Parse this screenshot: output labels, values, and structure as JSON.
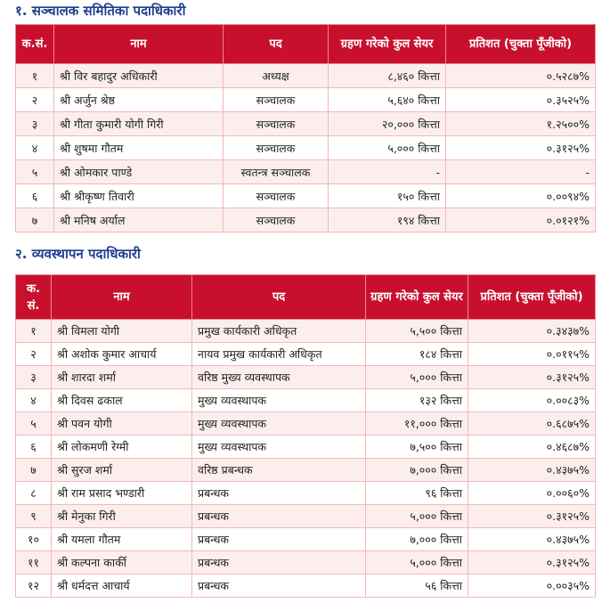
{
  "board": {
    "title": "१. सञ्चालक समितिका पदाधिकारी",
    "header": [
      "क.सं.",
      "नाम",
      "पद",
      "ग्रहण गरेको कुल सेयर",
      "प्रतिशत (चुक्ता पूँजीको)"
    ],
    "rows": [
      [
        "१",
        "श्री विर बहादुर अधिकारी",
        "अध्यक्ष",
        "८,४६० कित्ता",
        "०.५२८७%"
      ],
      [
        "२",
        "श्री अर्जुन श्रेष्ठ",
        "सञ्चालक",
        "५,६४० कित्ता",
        "०.३५२५%"
      ],
      [
        "३",
        "श्री गीता कुमारी योगी गिरी",
        "सञ्चालक",
        "२०,००० कित्ता",
        "१.२५००%"
      ],
      [
        "४",
        "श्री शुषमा गौतम",
        "सञ्चालक",
        "५,००० कित्ता",
        "०.३१२५%"
      ],
      [
        "५",
        "श्री ओमकार पाण्डे",
        "स्वतन्त्र सञ्चालक",
        "-",
        "-"
      ],
      [
        "६",
        "श्री श्रीकृष्ण तिवारी",
        "सञ्चालक",
        "१५० कित्ता",
        "०.००९४%"
      ],
      [
        "७",
        "श्री मनिष अर्याल",
        "सञ्चालक",
        "१९४ कित्ता",
        "०.०१२१%"
      ]
    ]
  },
  "management": {
    "title": "२. व्यवस्थापन पदाधिकारी",
    "header": [
      "क. सं.",
      "नाम",
      "पद",
      "ग्रहण गरेको कुल सेयर",
      "प्रतिशत (चुक्ता पूँजीको)"
    ],
    "rows": [
      [
        "१",
        "श्री विमला योगी",
        "प्रमुख कार्यकारी अधिकृत",
        "५,५०० कित्ता",
        "०.३४३७%"
      ],
      [
        "२",
        "श्री अशोक कुमार आचार्य",
        "नायव प्रमुख कार्यकारी अधिकृत",
        "१८४ कित्ता",
        "०.०११५%"
      ],
      [
        "३",
        "श्री शारदा शर्मा",
        "वरिष्ठ मुख्य व्यवस्थापक",
        "५,००० कित्ता",
        "०.३१२५%"
      ],
      [
        "४",
        "श्री दिवस ढकाल",
        "मुख्य व्यवस्थापक",
        "१३२ कित्ता",
        "०.००८३%"
      ],
      [
        "५",
        "श्री पवन योगी",
        "मुख्य व्यवस्थापक",
        "११,००० कित्ता",
        "०.६८७५%"
      ],
      [
        "६",
        "श्री लोकमणी रेग्मी",
        "मुख्य व्यवस्थापक",
        "७,५०० कित्ता",
        "०.४६८७%"
      ],
      [
        "७",
        "श्री सुरज शर्मा",
        "वरिष्ठ प्रबन्धक",
        "७,००० कित्ता",
        "०.४३७५%"
      ],
      [
        "८",
        "श्री राम प्रसाद भण्डारी",
        "प्रबन्धक",
        "९६ कित्ता",
        "०.००६०%"
      ],
      [
        "९",
        "श्री मेनुका गिरी",
        "प्रबन्धक",
        "५,००० कित्ता",
        "०.३१२५%"
      ],
      [
        "१०",
        "श्री यमला गौतम",
        "प्रबन्धक",
        "७,००० कित्ता",
        "०.४३७५%"
      ],
      [
        "११",
        "श्री कल्पना कार्की",
        "प्रबन्धक",
        "५,००० कित्ता",
        "०.३१२५%"
      ],
      [
        "१२",
        "श्री धर्मदत्त आचार्य",
        "प्रबन्धक",
        "५६ कित्ता",
        "०.००३५%"
      ]
    ]
  }
}
